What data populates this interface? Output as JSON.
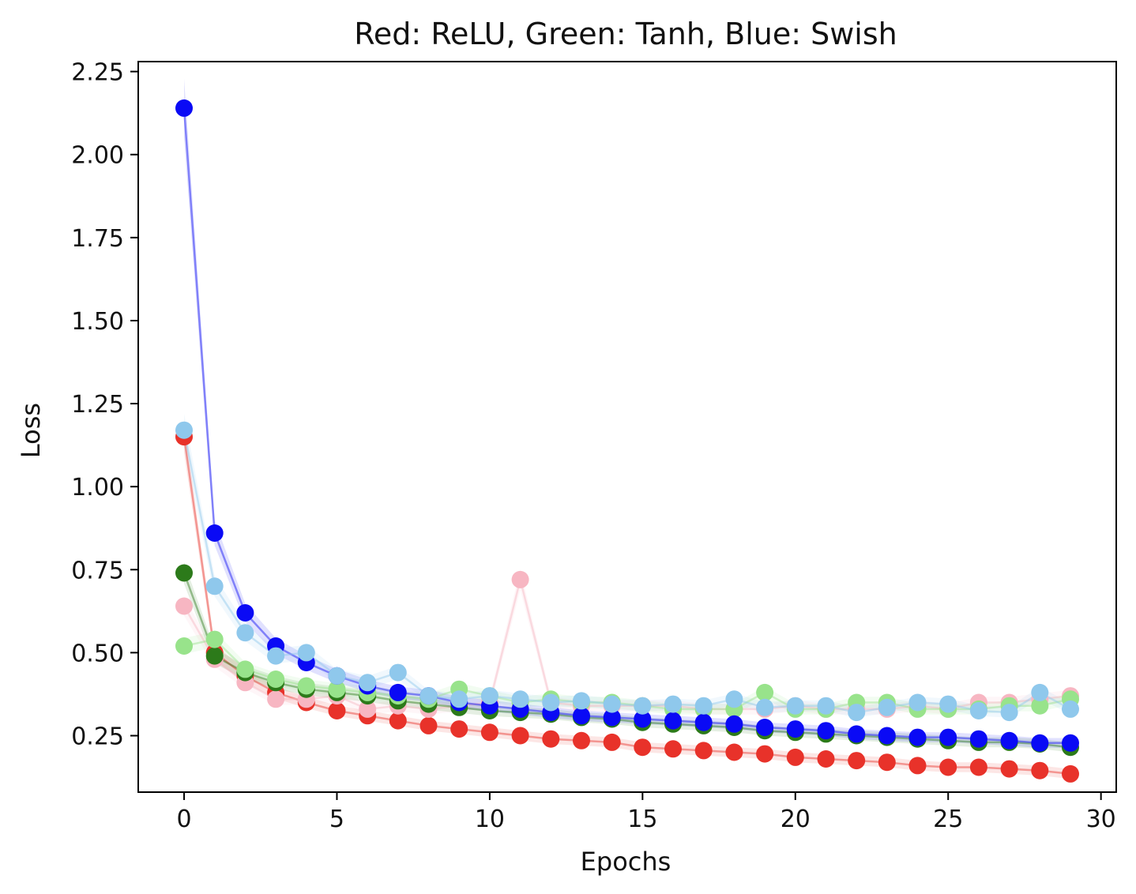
{
  "chart_data": {
    "type": "line",
    "title": "Red: ReLU, Green: Tanh, Blue: Swish",
    "xlabel": "Epochs",
    "ylabel": "Loss",
    "xlim": [
      -1.5,
      30.5
    ],
    "ylim": [
      0.08,
      2.28
    ],
    "xticks": [
      0,
      5,
      10,
      15,
      20,
      25,
      30
    ],
    "yticks": [
      0.25,
      0.5,
      0.75,
      1.0,
      1.25,
      1.5,
      1.75,
      2.0,
      2.25
    ],
    "ytick_labels": [
      "0.25",
      "0.50",
      "0.75",
      "1.00",
      "1.25",
      "1.50",
      "1.75",
      "2.00",
      "2.25"
    ],
    "grid": false,
    "legend": "none",
    "x": [
      0,
      1,
      2,
      3,
      4,
      5,
      6,
      7,
      8,
      9,
      10,
      11,
      12,
      13,
      14,
      15,
      16,
      17,
      18,
      19,
      20,
      21,
      22,
      23,
      24,
      25,
      26,
      27,
      28,
      29
    ],
    "series": [
      {
        "color": "#e8322a",
        "values": [
          1.15,
          0.5,
          0.43,
          0.38,
          0.35,
          0.325,
          0.31,
          0.295,
          0.28,
          0.27,
          0.26,
          0.25,
          0.24,
          0.235,
          0.23,
          0.215,
          0.21,
          0.205,
          0.2,
          0.195,
          0.185,
          0.18,
          0.175,
          0.17,
          0.16,
          0.155,
          0.155,
          0.15,
          0.145,
          0.135
        ]
      },
      {
        "color": "#f7b6c2",
        "values": [
          0.64,
          0.48,
          0.41,
          0.36,
          0.36,
          0.37,
          0.33,
          0.34,
          0.33,
          0.34,
          0.35,
          0.72,
          0.35,
          0.34,
          0.34,
          0.34,
          0.34,
          0.33,
          0.33,
          0.33,
          0.34,
          0.33,
          0.33,
          0.33,
          0.34,
          0.33,
          0.35,
          0.35,
          0.36,
          0.37
        ]
      },
      {
        "color": "#2c7a1a",
        "values": [
          0.74,
          0.49,
          0.44,
          0.41,
          0.39,
          0.38,
          0.37,
          0.355,
          0.345,
          0.335,
          0.325,
          0.32,
          0.315,
          0.305,
          0.3,
          0.29,
          0.285,
          0.28,
          0.275,
          0.265,
          0.26,
          0.255,
          0.25,
          0.245,
          0.24,
          0.235,
          0.23,
          0.23,
          0.225,
          0.215
        ]
      },
      {
        "color": "#98e38b",
        "values": [
          0.52,
          0.54,
          0.45,
          0.42,
          0.4,
          0.39,
          0.38,
          0.37,
          0.36,
          0.39,
          0.37,
          0.35,
          0.36,
          0.35,
          0.35,
          0.34,
          0.33,
          0.33,
          0.33,
          0.38,
          0.33,
          0.33,
          0.35,
          0.35,
          0.33,
          0.33,
          0.33,
          0.34,
          0.34,
          0.36
        ]
      },
      {
        "color": "#0a0af5",
        "values": [
          2.14,
          0.86,
          0.62,
          0.52,
          0.47,
          0.43,
          0.4,
          0.38,
          0.37,
          0.35,
          0.34,
          0.33,
          0.32,
          0.31,
          0.305,
          0.3,
          0.295,
          0.29,
          0.285,
          0.275,
          0.27,
          0.265,
          0.255,
          0.25,
          0.245,
          0.245,
          0.24,
          0.235,
          0.228,
          0.228
        ]
      },
      {
        "color": "#8fc8ec",
        "values": [
          1.17,
          0.7,
          0.56,
          0.49,
          0.5,
          0.43,
          0.41,
          0.44,
          0.37,
          0.36,
          0.37,
          0.36,
          0.35,
          0.355,
          0.345,
          0.34,
          0.345,
          0.34,
          0.36,
          0.335,
          0.34,
          0.34,
          0.32,
          0.335,
          0.35,
          0.345,
          0.325,
          0.32,
          0.38,
          0.33
        ]
      }
    ]
  }
}
